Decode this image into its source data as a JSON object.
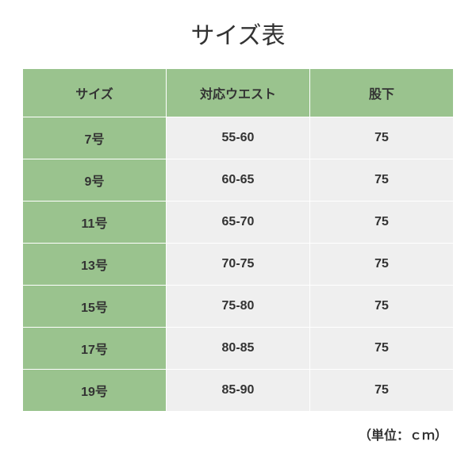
{
  "title": "サイズ表",
  "unit_label": "（単位：ｃｍ）",
  "table": {
    "type": "table",
    "columns": [
      "サイズ",
      "対応ウエスト",
      "股下"
    ],
    "rows": [
      [
        "7号",
        "55-60",
        "75"
      ],
      [
        "9号",
        "60-65",
        "75"
      ],
      [
        "11号",
        "65-70",
        "75"
      ],
      [
        "13号",
        "70-75",
        "75"
      ],
      [
        "15号",
        "75-80",
        "75"
      ],
      [
        "17号",
        "80-85",
        "75"
      ],
      [
        "19号",
        "85-90",
        "75"
      ]
    ],
    "header_bg": "#9ac38e",
    "size_col_bg": "#9ac38e",
    "data_bg": "#efefef",
    "border_color": "#ffffff",
    "text_color": "#333333",
    "header_fontsize": 16,
    "cell_fontsize": 16,
    "title_fontsize": 30,
    "background_color": "#ffffff"
  }
}
